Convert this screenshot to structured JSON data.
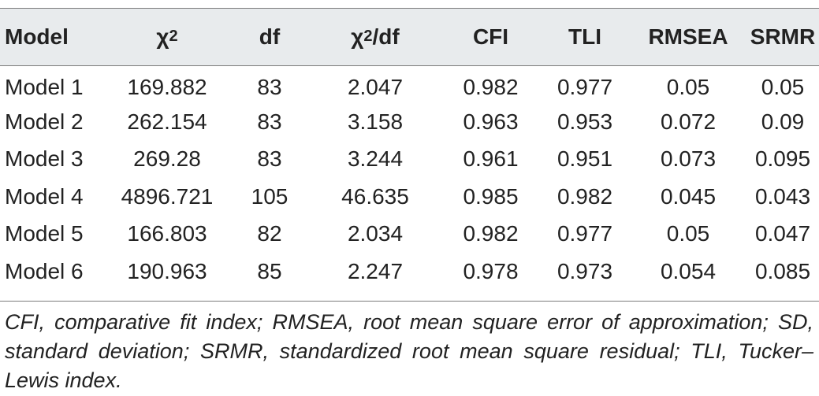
{
  "table": {
    "headers": [
      {
        "main": "Model",
        "sup": ""
      },
      {
        "main": "χ",
        "sup": "2",
        "after": ""
      },
      {
        "main": "df",
        "sup": ""
      },
      {
        "main": "χ",
        "sup": "2",
        "after": "/df"
      },
      {
        "main": "CFI",
        "sup": ""
      },
      {
        "main": "TLI",
        "sup": ""
      },
      {
        "main": "RMSEA",
        "sup": ""
      },
      {
        "main": "SRMR",
        "sup": ""
      }
    ],
    "rows": [
      [
        "Model 1",
        "169.882",
        "83",
        "2.047",
        "0.982",
        "0.977",
        "0.05",
        "0.05"
      ],
      [
        "Model 2",
        "262.154",
        "83",
        "3.158",
        "0.963",
        "0.953",
        "0.072",
        "0.09"
      ],
      [
        "Model 3",
        "269.28",
        "83",
        "3.244",
        "0.961",
        "0.951",
        "0.073",
        "0.095"
      ],
      [
        "Model 4",
        "4896.721",
        "105",
        "46.635",
        "0.985",
        "0.982",
        "0.045",
        "0.043"
      ],
      [
        "Model 5",
        "166.803",
        "82",
        "2.034",
        "0.982",
        "0.977",
        "0.05",
        "0.047"
      ],
      [
        "Model 6",
        "190.963",
        "85",
        "2.247",
        "0.978",
        "0.973",
        "0.054",
        "0.085"
      ]
    ]
  },
  "footnote": "CFI, comparative fit index; RMSEA, root mean square error of approximation; SD, standard deviation; SRMR, standardized root mean square residual; TLI, Tucker–Lewis index."
}
